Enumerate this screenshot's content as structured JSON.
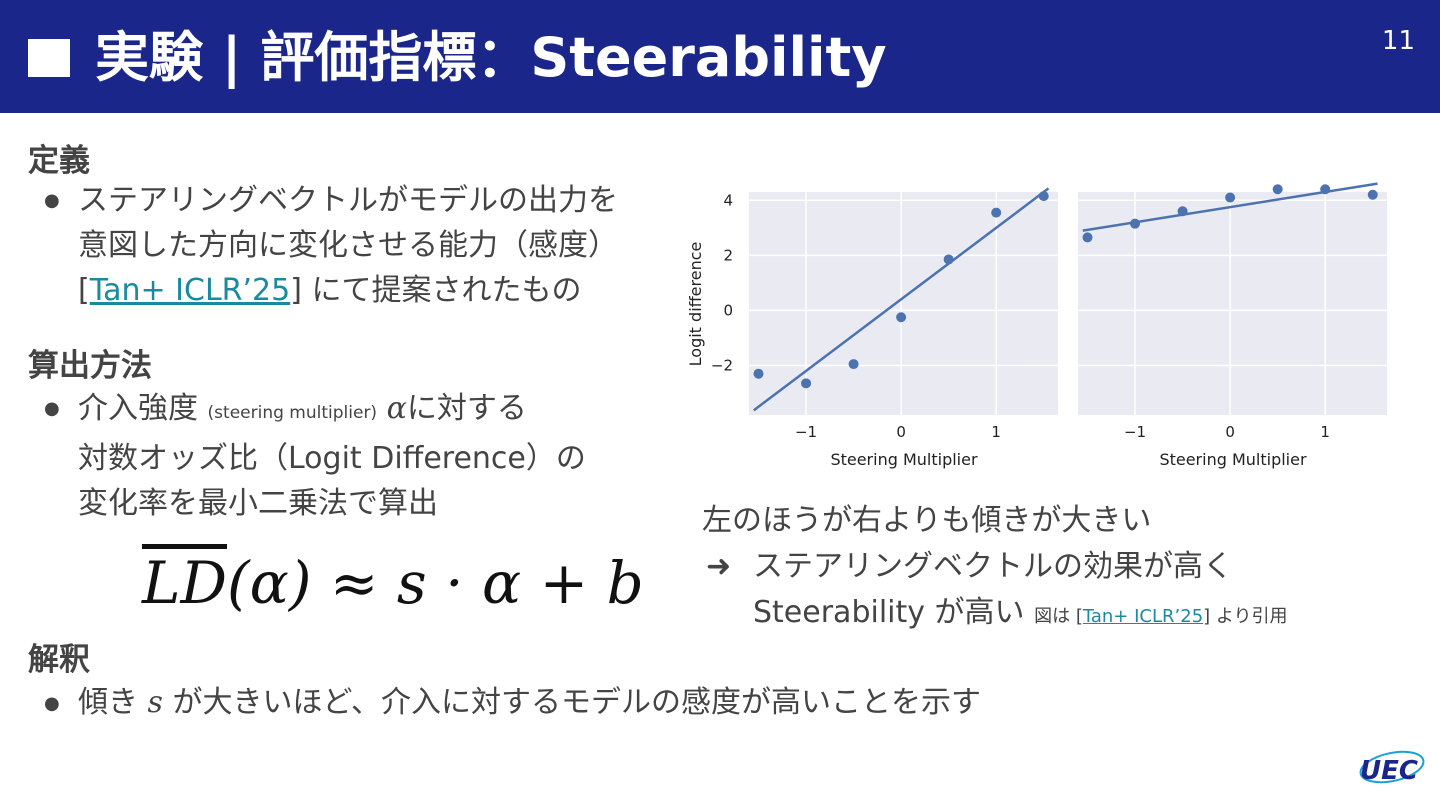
{
  "header": {
    "title": "実験 | 評価指標：Steerability",
    "page_number": "11"
  },
  "definition": {
    "heading": "定義",
    "line1": "ステアリングベクトルがモデルの出力を",
    "line2": "意図した方向に変化させる能力（感度）",
    "ref_open": "[",
    "ref": "Tan+ ICLR’25",
    "ref_close": "]",
    "line3_rest": " にて提案されたもの"
  },
  "method": {
    "heading": "算出方法",
    "line1_a": "介入強度 ",
    "line1_small": "(steering multiplier)",
    "alpha": "α",
    "line1_b": "に対する",
    "line2": "対数オッズ比（Logit Difference）の",
    "line3": "変化率を最小二乗法で算出"
  },
  "formula": {
    "lhs": "LD",
    "rest": "(α) ≈ s · α + b"
  },
  "interpretation": {
    "heading": "解釈",
    "text_a": "傾き ",
    "s": "s",
    "text_b": " が大きいほど、介入に対するモデルの感度が高いことを示す"
  },
  "note": {
    "line1": "左のほうが右よりも傾きが大きい",
    "arrow": "➜",
    "line2": "ステアリングベクトルの効果が高く",
    "line3": "Steerability が高い",
    "cite_a": "図は [",
    "cite_ref": "Tan+ ICLR’25",
    "cite_b": "] より引用"
  },
  "logo": {
    "text": "UEC"
  },
  "colors": {
    "header": "#1a2689",
    "point": "#4c72b0",
    "panel_bg": "#eaeaf2",
    "link": "#1a8aa0"
  },
  "chart_data": [
    {
      "type": "scatter",
      "xlabel": "Steering Multiplier",
      "ylabel": "Logit difference",
      "xlim": [
        -1.6,
        1.65
      ],
      "ylim": [
        -3.8,
        4.3
      ],
      "xticks": [
        -1,
        0,
        1
      ],
      "yticks": [
        -2,
        0,
        2,
        4
      ],
      "grid": true,
      "points": {
        "x": [
          -1.5,
          -1.0,
          -0.5,
          0.0,
          0.5,
          1.0,
          1.5
        ],
        "y": [
          -2.3,
          -2.65,
          -1.95,
          -0.25,
          1.85,
          3.55,
          4.15
        ]
      },
      "fit": {
        "slope": 2.6,
        "intercept": 0.4
      }
    },
    {
      "type": "scatter",
      "xlabel": "Steering Multiplier",
      "ylabel": "",
      "xlim": [
        -1.6,
        1.65
      ],
      "ylim": [
        -3.8,
        4.3
      ],
      "xticks": [
        -1,
        0,
        1
      ],
      "yticks": [
        -2,
        0,
        2,
        4
      ],
      "grid": true,
      "points": {
        "x": [
          -1.5,
          -1.0,
          -0.5,
          0.0,
          0.5,
          1.0,
          1.5
        ],
        "y": [
          2.65,
          3.15,
          3.6,
          4.1,
          4.4,
          4.4,
          4.2
        ]
      },
      "fit": {
        "slope": 0.55,
        "intercept": 3.75
      }
    }
  ]
}
